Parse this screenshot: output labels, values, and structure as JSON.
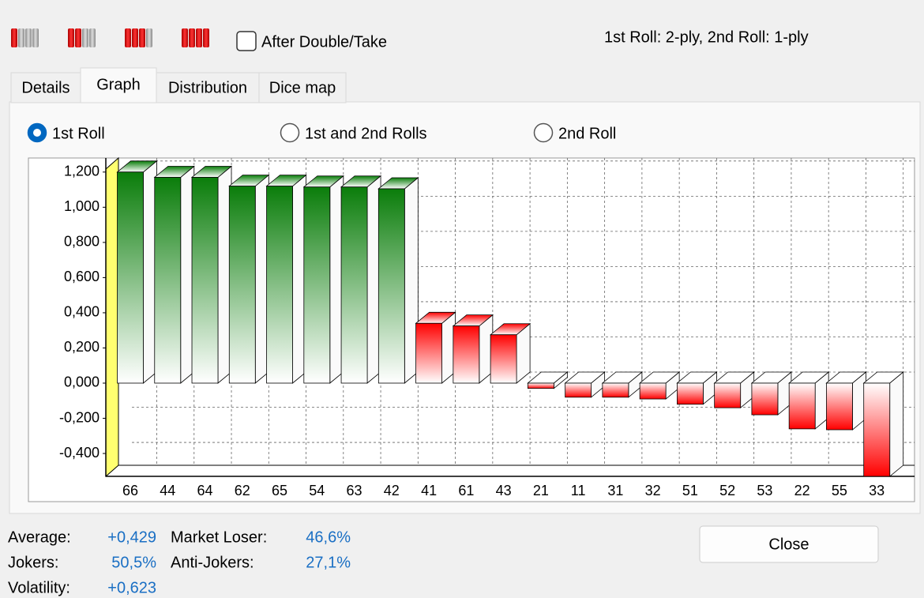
{
  "toolbar": {
    "checkbox_label": "After Double/Take",
    "ply_info": "1st Roll: 2-ply, 2nd Roll: 1-ply"
  },
  "tabs": [
    "Details",
    "Graph",
    "Distribution",
    "Dice map"
  ],
  "radio_options": [
    "1st Roll",
    "1st and 2nd Rolls",
    "2nd Roll"
  ],
  "chart_data": {
    "type": "bar3d",
    "categories": [
      "66",
      "44",
      "64",
      "62",
      "65",
      "54",
      "63",
      "42",
      "41",
      "61",
      "43",
      "21",
      "11",
      "31",
      "32",
      "51",
      "52",
      "53",
      "22",
      "55",
      "33"
    ],
    "values": [
      1.2,
      1.17,
      1.17,
      1.12,
      1.12,
      1.115,
      1.115,
      1.105,
      0.34,
      0.325,
      0.275,
      -0.03,
      -0.08,
      -0.08,
      -0.09,
      -0.12,
      -0.14,
      -0.18,
      -0.26,
      -0.265,
      -0.53
    ],
    "colors": [
      "#0a7d0a",
      "#0a7d0a",
      "#0a7d0a",
      "#0a7d0a",
      "#0a7d0a",
      "#0a7d0a",
      "#0a7d0a",
      "#0a7d0a",
      "#ff0000",
      "#ff0000",
      "#ff0000",
      "#ff0000",
      "#ff0000",
      "#ff0000",
      "#ff0000",
      "#ff0000",
      "#ff0000",
      "#ff0000",
      "#ff0000",
      "#ff0000",
      "#ff0000"
    ],
    "ylim": [
      -0.53,
      1.28
    ],
    "yticks": [
      {
        "value": 1.2,
        "label": "1,200"
      },
      {
        "value": 1.0,
        "label": "1,000"
      },
      {
        "value": 0.8,
        "label": "0,800"
      },
      {
        "value": 0.6,
        "label": "0,600"
      },
      {
        "value": 0.4,
        "label": "0,400"
      },
      {
        "value": 0.2,
        "label": "0,200"
      },
      {
        "value": 0,
        "label": "0,000"
      },
      {
        "value": -0.2,
        "label": "-0,200"
      },
      {
        "value": -0.4,
        "label": "-0,400"
      }
    ],
    "grid": true
  },
  "stats": [
    {
      "label": "Average:",
      "value": "+0,429"
    },
    {
      "label": "Market Loser:",
      "value": "46,6%"
    },
    {
      "label": "Jokers:",
      "value": "50,5%"
    },
    {
      "label": "Anti-Jokers:",
      "value": "27,1%"
    },
    {
      "label": "Volatility:",
      "value": "+0,623"
    }
  ],
  "close_button": "Close"
}
